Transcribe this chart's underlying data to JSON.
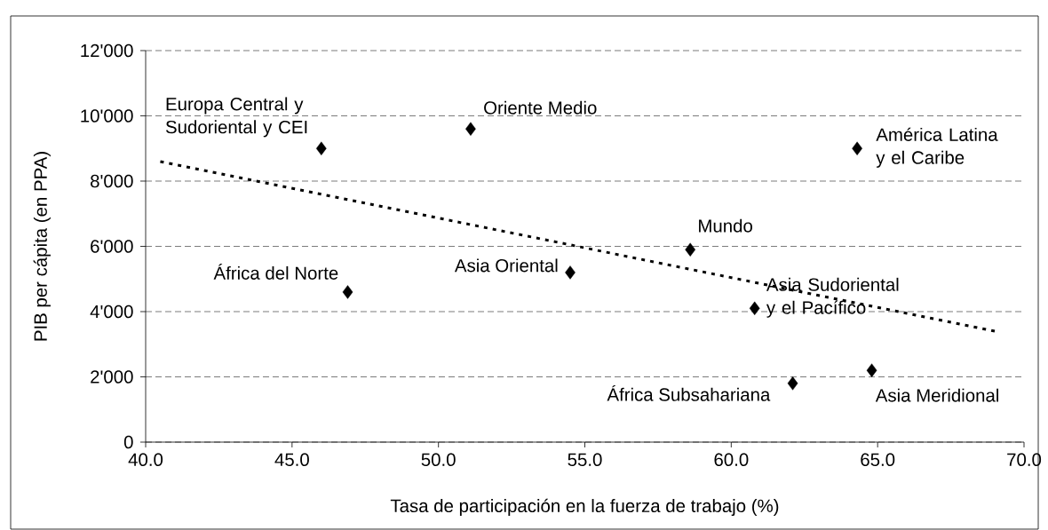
{
  "chart_data": {
    "type": "scatter",
    "xlabel": "Tasa de participación en la fuerza de trabajo (%)",
    "ylabel": "PIB per cápita (en PPA)",
    "xlim": [
      40,
      70
    ],
    "xticks": [
      {
        "value": 40,
        "label": "40.0"
      },
      {
        "value": 45,
        "label": "45.0"
      },
      {
        "value": 50,
        "label": "50.0"
      },
      {
        "value": 55,
        "label": "55.0"
      },
      {
        "value": 60,
        "label": "60.0"
      },
      {
        "value": 65,
        "label": "65.0"
      },
      {
        "value": 70,
        "label": "70.0"
      }
    ],
    "ylim": [
      0,
      12000
    ],
    "yticks": [
      0,
      {
        "value": 2000,
        "label": "2'000"
      },
      {
        "value": 4000,
        "label": "4'000"
      },
      {
        "value": 6000,
        "label": "6'000"
      },
      {
        "value": 8000,
        "label": "8'000"
      },
      {
        "value": 10000,
        "label": "10'000"
      },
      {
        "value": 12000,
        "label": "12'000"
      }
    ],
    "grid": "y",
    "series": [
      {
        "color": "#000000",
        "marker": "diamond",
        "x": [
          46.0,
          51.1,
          46.9,
          54.5,
          64.3,
          58.6,
          60.8,
          62.1,
          64.8
        ],
        "values": [
          9000,
          9600,
          4600,
          5200,
          9000,
          5900,
          4100,
          1800,
          2200
        ]
      },
      {
        "type": "line",
        "color": "#000000",
        "marker": "none",
        "line_style": "dotted",
        "x": [
          40.5,
          69.0
        ],
        "values": [
          8600,
          3400
        ]
      }
    ],
    "annotations": [
      {
        "text": "Europa Central y Sudoriental y CEI",
        "x": 46.0,
        "y": 9000
      },
      {
        "text": "Oriente Medio",
        "x": 51.1,
        "y": 9600
      },
      {
        "text": "África del Norte",
        "x": 46.9,
        "y": 4600
      },
      {
        "text": "Asia Oriental",
        "x": 54.5,
        "y": 5200
      },
      {
        "text": "América Latina y el Caribe",
        "x": 64.3,
        "y": 9000
      },
      {
        "text": "Mundo",
        "x": 58.6,
        "y": 5900
      },
      {
        "text": "Asia Sudoriental y el Pacífico",
        "x": 60.8,
        "y": 4100
      },
      {
        "text": "África Subsahariana",
        "x": 62.1,
        "y": 1800
      },
      {
        "text": "Asia Meridional",
        "x": 64.8,
        "y": 2200
      }
    ]
  }
}
